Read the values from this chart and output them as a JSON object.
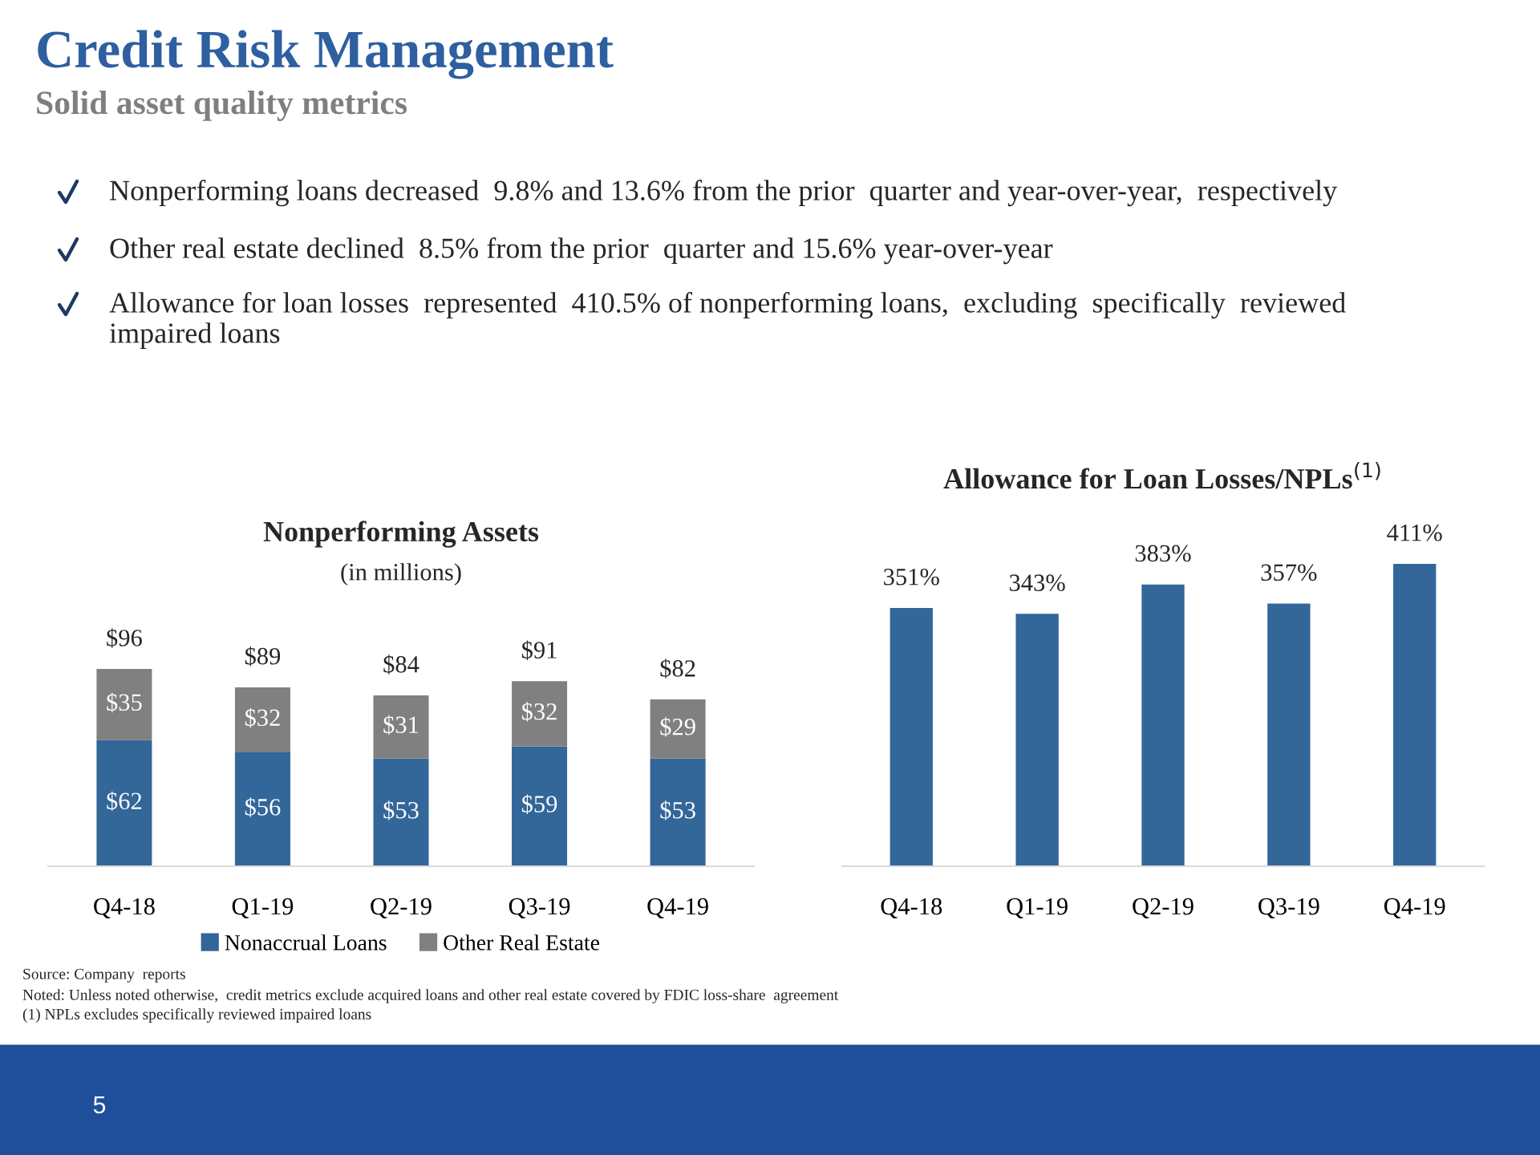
{
  "chart_data": [
    {
      "type": "bar",
      "title": "Nonperforming Assets",
      "subtitle": "(in millions)",
      "stacked": true,
      "legend": "bottom",
      "categories": [
        "Q4-18",
        "Q1-19",
        "Q2-19",
        "Q3-19",
        "Q4-19"
      ],
      "series": [
        {
          "name": "Nonaccrual Loans",
          "color": "#336699",
          "values": [
            62,
            56,
            53,
            59,
            53
          ],
          "value_labels": [
            "$62",
            "$56",
            "$53",
            "$59",
            "$53"
          ]
        },
        {
          "name": "Other Real Estate",
          "color": "#808080",
          "values": [
            35,
            32,
            31,
            32,
            29
          ],
          "value_labels": [
            "$35",
            "$32",
            "$31",
            "$32",
            "$29"
          ]
        }
      ],
      "totals": [
        "$96",
        "$89",
        "$84",
        "$91",
        "$82"
      ],
      "annotations": [
        "Credit Risk Management",
        "Solid asset quality metrics",
        "Nonperforming loans decreased  9.8% and 13.6% from the prior  quarter and year-over-year,  respectively",
        "Other real estate declined  8.5% from the prior  quarter and 15.6% year-over-year",
        "Allowance for loan losses  represented  410.5% of nonperforming loans,  excluding  specifically  reviewed impaired loans",
        "Source: Company  reports",
        "Noted: Unless noted otherwise,  credit metrics exclude acquired loans and other real estate covered by FDIC loss-share  agreement",
        "(1) NPLs excludes specifically reviewed impaired loans",
        "5"
      ]
    },
    {
      "type": "bar",
      "title": "Allowance for Loan Losses/NPLs$^{(1)}$",
      "categories": [
        "Q4-18",
        "Q1-19",
        "Q2-19",
        "Q3-19",
        "Q4-19"
      ],
      "values": [
        351,
        343,
        383,
        357,
        411
      ],
      "color": "#336699",
      "value_labels": [
        "351%",
        "343%",
        "383%",
        "357%",
        "411%"
      ]
    }
  ]
}
